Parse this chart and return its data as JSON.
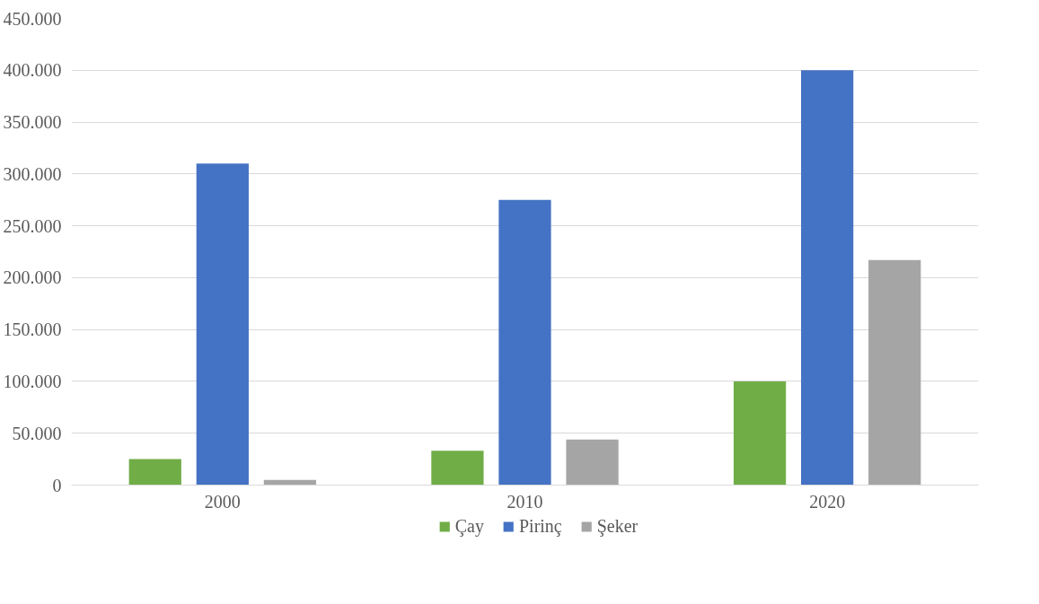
{
  "chart_data": {
    "type": "bar",
    "categories": [
      "2000",
      "2010",
      "2020"
    ],
    "series": [
      {
        "name": "Çay",
        "color": "#70ad47",
        "values": [
          25000,
          33000,
          100000
        ]
      },
      {
        "name": "Pirinç",
        "color": "#4472c4",
        "values": [
          310000,
          275000,
          400000
        ]
      },
      {
        "name": "Şeker",
        "color": "#a5a5a5",
        "values": [
          5000,
          44000,
          217000
        ]
      }
    ],
    "ylim": [
      0,
      450000
    ],
    "yticks": [
      {
        "value": 0,
        "label": "0"
      },
      {
        "value": 50000,
        "label": "50.000"
      },
      {
        "value": 100000,
        "label": "100.000"
      },
      {
        "value": 150000,
        "label": "150.000"
      },
      {
        "value": 200000,
        "label": "200.000"
      },
      {
        "value": 250000,
        "label": "250.000"
      },
      {
        "value": 300000,
        "label": "300.000"
      },
      {
        "value": 350000,
        "label": "350.000"
      },
      {
        "value": 400000,
        "label": "400.000"
      },
      {
        "value": 450000,
        "label": "450.000"
      }
    ],
    "grid": "y",
    "legend": "bottom"
  }
}
